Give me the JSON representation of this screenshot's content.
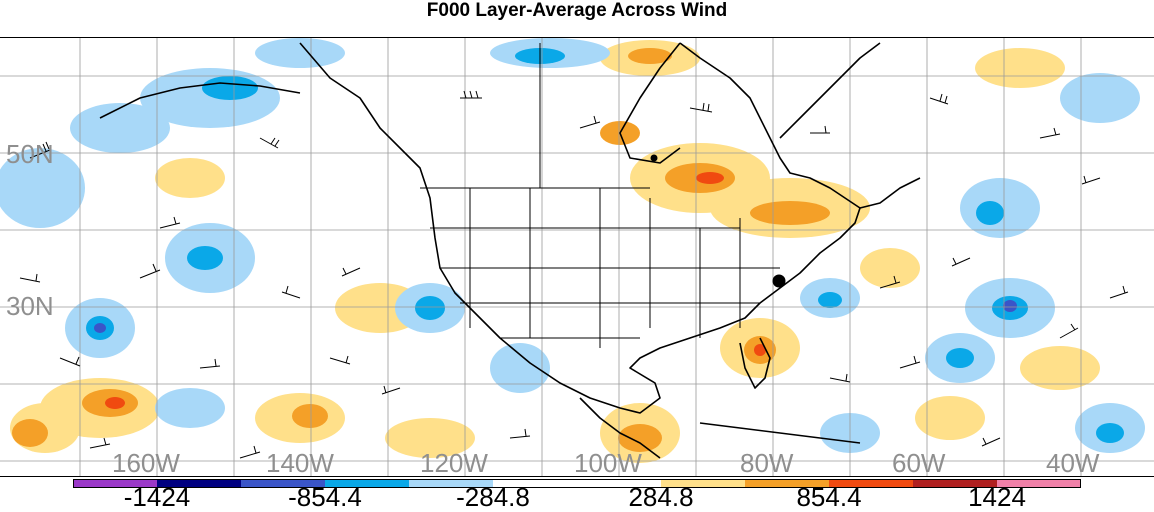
{
  "title": "F000 Layer-Average Across Wind",
  "lat_labels": [
    "50N",
    "30N"
  ],
  "lon_labels": [
    "160W",
    "140W",
    "120W",
    "100W",
    "80W",
    "60W",
    "40W"
  ],
  "colorbar": {
    "labels": [
      "-1424",
      "-854.4",
      "-284.8",
      "284.8",
      "854.4",
      "1424"
    ],
    "colors": [
      "#9a38c8",
      "#000080",
      "#3a55c8",
      "#0aa8e8",
      "#a8d8f8",
      "#ffffff",
      "#ffffff",
      "#ffe08a",
      "#f4a028",
      "#f04a10",
      "#b02020",
      "#f080a8"
    ]
  },
  "legend": {
    "positive": "#f4a028",
    "negative": "#0aa8e8"
  }
}
